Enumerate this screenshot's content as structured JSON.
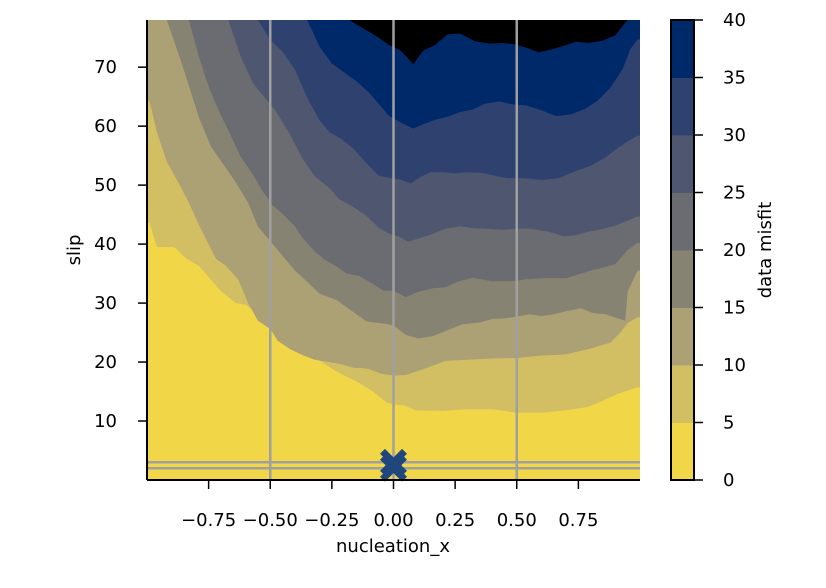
{
  "chart_data": {
    "type": "contour",
    "xlabel": "nucleation_x",
    "ylabel": "slip",
    "colorbar_label": "data misfit",
    "xlim": [
      -1.0,
      1.0
    ],
    "ylim": [
      0,
      78
    ],
    "xticks": [
      {
        "value": -0.75,
        "label": "−0.75"
      },
      {
        "value": -0.5,
        "label": "−0.50"
      },
      {
        "value": -0.25,
        "label": "−0.25"
      },
      {
        "value": 0.0,
        "label": "0.00"
      },
      {
        "value": 0.25,
        "label": "0.25"
      },
      {
        "value": 0.5,
        "label": "0.50"
      },
      {
        "value": 0.75,
        "label": "0.75"
      }
    ],
    "yticks": [
      {
        "value": 10,
        "label": "10"
      },
      {
        "value": 20,
        "label": "20"
      },
      {
        "value": 30,
        "label": "30"
      },
      {
        "value": 40,
        "label": "40"
      },
      {
        "value": 50,
        "label": "50"
      },
      {
        "value": 60,
        "label": "60"
      },
      {
        "value": 70,
        "label": "70"
      }
    ],
    "levels": [
      0,
      5,
      10,
      15,
      20,
      25,
      30,
      35,
      40
    ],
    "colorbar_ticks": [
      "0",
      "5",
      "10",
      "15",
      "20",
      "25",
      "30",
      "35",
      "40"
    ],
    "level_colors": [
      "#f1d748",
      "#d2bf64",
      "#aca075",
      "#878372",
      "#6b6c71",
      "#4e5670",
      "#2e416f",
      "#00296a"
    ],
    "contours": [
      {
        "level": 5,
        "points": [
          [
            -0.99,
            43.6
          ],
          [
            -0.96,
            39.5
          ],
          [
            -0.89,
            39.5
          ],
          [
            -0.84,
            37.5
          ],
          [
            -0.79,
            36.3
          ],
          [
            -0.75,
            34.4
          ],
          [
            -0.7,
            32
          ],
          [
            -0.64,
            30
          ],
          [
            -0.6,
            29.7
          ],
          [
            -0.54,
            27.8
          ],
          [
            -0.48,
            26
          ],
          [
            -0.43,
            24.6
          ],
          [
            -0.39,
            23
          ],
          [
            -0.34,
            21.5
          ],
          [
            -0.29,
            20
          ],
          [
            -0.24,
            18.6
          ],
          [
            -0.19,
            17.5
          ],
          [
            -0.14,
            16.5
          ],
          [
            -0.08,
            14.9
          ],
          [
            -0.03,
            13.2
          ],
          [
            0.0,
            12.8
          ],
          [
            0.04,
            12.7
          ],
          [
            0.09,
            11.8
          ],
          [
            0.2,
            11.7
          ],
          [
            0.3,
            12
          ],
          [
            0.4,
            12
          ],
          [
            0.5,
            11.4
          ],
          [
            0.6,
            11.4
          ],
          [
            0.7,
            11.8
          ],
          [
            0.79,
            12.4
          ],
          [
            0.84,
            13.3
          ],
          [
            0.91,
            14.6
          ],
          [
            0.99,
            15.7
          ]
        ]
      },
      {
        "level": 10,
        "points": [
          [
            -0.99,
            64.2
          ],
          [
            -0.96,
            59
          ],
          [
            -0.92,
            54
          ],
          [
            -0.88,
            51
          ],
          [
            -0.83,
            47
          ],
          [
            -0.79,
            43.3
          ],
          [
            -0.75,
            40
          ],
          [
            -0.72,
            37.5
          ],
          [
            -0.68,
            36.3
          ],
          [
            -0.63,
            34
          ],
          [
            -0.59,
            30
          ],
          [
            -0.55,
            27
          ],
          [
            -0.5,
            25.6
          ],
          [
            -0.47,
            23.6
          ],
          [
            -0.42,
            22.2
          ],
          [
            -0.37,
            21.2
          ],
          [
            -0.32,
            20.4
          ],
          [
            -0.26,
            20
          ],
          [
            -0.21,
            19.6
          ],
          [
            -0.16,
            19
          ],
          [
            -0.13,
            19
          ],
          [
            -0.1,
            18.8
          ],
          [
            -0.05,
            18
          ],
          [
            0.0,
            17.7
          ],
          [
            0.05,
            17.8
          ],
          [
            0.1,
            18.5
          ],
          [
            0.16,
            19.4
          ],
          [
            0.21,
            20.2
          ],
          [
            0.3,
            20.4
          ],
          [
            0.4,
            20.6
          ],
          [
            0.5,
            20.7
          ],
          [
            0.6,
            21.1
          ],
          [
            0.7,
            21.3
          ],
          [
            0.8,
            22.3
          ],
          [
            0.88,
            23.3
          ],
          [
            0.92,
            25
          ],
          [
            0.95,
            26.6
          ],
          [
            0.99,
            27.6
          ]
        ]
      },
      {
        "level": 15,
        "points": [
          [
            -0.92,
            78
          ],
          [
            -0.86,
            70.8
          ],
          [
            -0.79,
            61.5
          ],
          [
            -0.74,
            56.5
          ],
          [
            -0.69,
            53.5
          ],
          [
            -0.64,
            50.5
          ],
          [
            -0.59,
            47
          ],
          [
            -0.55,
            43
          ],
          [
            -0.5,
            40.5
          ],
          [
            -0.45,
            38
          ],
          [
            -0.4,
            35.5
          ],
          [
            -0.35,
            33.6
          ],
          [
            -0.3,
            31.6
          ],
          [
            -0.23,
            30.5
          ],
          [
            -0.18,
            29
          ],
          [
            -0.11,
            26.9
          ],
          [
            -0.08,
            26.7
          ],
          [
            -0.03,
            26.5
          ],
          [
            0.0,
            26.2
          ],
          [
            0.05,
            24.6
          ],
          [
            0.1,
            24
          ],
          [
            0.16,
            24.4
          ],
          [
            0.22,
            25.4
          ],
          [
            0.28,
            26.4
          ],
          [
            0.35,
            26.7
          ],
          [
            0.4,
            27.3
          ],
          [
            0.45,
            27.4
          ],
          [
            0.5,
            27.7
          ],
          [
            0.55,
            28.1
          ],
          [
            0.6,
            27.8
          ],
          [
            0.65,
            28.1
          ],
          [
            0.71,
            28.7
          ],
          [
            0.76,
            29.1
          ],
          [
            0.81,
            28.3
          ],
          [
            0.86,
            28.1
          ],
          [
            0.91,
            27.4
          ],
          [
            0.94,
            27
          ],
          [
            0.95,
            32
          ],
          [
            0.99,
            35.5
          ]
        ]
      },
      {
        "level": 20,
        "points": [
          [
            -0.83,
            78
          ],
          [
            -0.79,
            71.8
          ],
          [
            -0.75,
            66.7
          ],
          [
            -0.71,
            62.7
          ],
          [
            -0.66,
            58.4
          ],
          [
            -0.62,
            54.8
          ],
          [
            -0.57,
            51.8
          ],
          [
            -0.53,
            48.9
          ],
          [
            -0.49,
            46.6
          ],
          [
            -0.45,
            45.1
          ],
          [
            -0.4,
            43
          ],
          [
            -0.37,
            41.1
          ],
          [
            -0.32,
            38.8
          ],
          [
            -0.28,
            37.4
          ],
          [
            -0.23,
            36.2
          ],
          [
            -0.19,
            35
          ],
          [
            -0.14,
            34.6
          ],
          [
            -0.09,
            33.4
          ],
          [
            -0.04,
            32.1
          ],
          [
            0.0,
            32.1
          ],
          [
            0.05,
            31
          ],
          [
            0.1,
            31.9
          ],
          [
            0.16,
            32.5
          ],
          [
            0.21,
            32.7
          ],
          [
            0.26,
            33.6
          ],
          [
            0.32,
            34.3
          ],
          [
            0.4,
            33.7
          ],
          [
            0.49,
            33.7
          ],
          [
            0.53,
            34
          ],
          [
            0.6,
            34.2
          ],
          [
            0.7,
            34.2
          ],
          [
            0.8,
            35.5
          ],
          [
            0.9,
            36.6
          ],
          [
            0.95,
            39
          ],
          [
            0.99,
            40.2
          ]
        ]
      },
      {
        "level": 25,
        "points": [
          [
            -0.67,
            78
          ],
          [
            -0.62,
            71.8
          ],
          [
            -0.57,
            67.3
          ],
          [
            -0.52,
            64.7
          ],
          [
            -0.48,
            62.7
          ],
          [
            -0.42,
            58.6
          ],
          [
            -0.37,
            54.6
          ],
          [
            -0.32,
            51.5
          ],
          [
            -0.26,
            49.5
          ],
          [
            -0.22,
            47.6
          ],
          [
            -0.16,
            46.2
          ],
          [
            -0.11,
            44.8
          ],
          [
            -0.06,
            42.8
          ],
          [
            -0.02,
            41.8
          ],
          [
            0.02,
            41.3
          ],
          [
            0.06,
            40.4
          ],
          [
            0.09,
            40.8
          ],
          [
            0.15,
            41.6
          ],
          [
            0.21,
            42.6
          ],
          [
            0.27,
            43
          ],
          [
            0.33,
            42.7
          ],
          [
            0.38,
            42.6
          ],
          [
            0.44,
            42.4
          ],
          [
            0.5,
            42.6
          ],
          [
            0.56,
            42.6
          ],
          [
            0.63,
            42.1
          ],
          [
            0.69,
            41.3
          ],
          [
            0.74,
            41.5
          ],
          [
            0.79,
            42.1
          ],
          [
            0.84,
            42.5
          ],
          [
            0.89,
            43
          ],
          [
            0.94,
            43.8
          ],
          [
            0.99,
            44.7
          ]
        ]
      },
      {
        "level": 30,
        "points": [
          [
            -0.55,
            78
          ],
          [
            -0.5,
            74.6
          ],
          [
            -0.45,
            72.6
          ],
          [
            -0.4,
            69.6
          ],
          [
            -0.35,
            64.8
          ],
          [
            -0.3,
            61
          ],
          [
            -0.26,
            59
          ],
          [
            -0.21,
            57.8
          ],
          [
            -0.16,
            56.1
          ],
          [
            -0.11,
            53.7
          ],
          [
            -0.06,
            51.6
          ],
          [
            -0.01,
            51.2
          ],
          [
            0.03,
            50.9
          ],
          [
            0.07,
            50.3
          ],
          [
            0.11,
            51.4
          ],
          [
            0.15,
            52.2
          ],
          [
            0.2,
            52.2
          ],
          [
            0.25,
            52
          ],
          [
            0.3,
            52.2
          ],
          [
            0.36,
            52.1
          ],
          [
            0.42,
            51.5
          ],
          [
            0.46,
            51.2
          ],
          [
            0.53,
            51.2
          ],
          [
            0.57,
            51
          ],
          [
            0.61,
            50.9
          ],
          [
            0.67,
            51.2
          ],
          [
            0.74,
            52.4
          ],
          [
            0.8,
            53.3
          ],
          [
            0.86,
            54.7
          ],
          [
            0.91,
            56.3
          ],
          [
            0.95,
            57.4
          ],
          [
            0.99,
            58.4
          ]
        ]
      },
      {
        "level": 35,
        "points": [
          [
            -0.35,
            78
          ],
          [
            -0.3,
            73.5
          ],
          [
            -0.25,
            70.6
          ],
          [
            -0.2,
            69.1
          ],
          [
            -0.15,
            67.6
          ],
          [
            -0.1,
            65.7
          ],
          [
            -0.06,
            63.8
          ],
          [
            -0.02,
            61.8
          ],
          [
            0.03,
            60.6
          ],
          [
            0.08,
            59.6
          ],
          [
            0.12,
            60.3
          ],
          [
            0.17,
            61.1
          ],
          [
            0.22,
            61.6
          ],
          [
            0.27,
            62.4
          ],
          [
            0.32,
            62.8
          ],
          [
            0.37,
            63.8
          ],
          [
            0.43,
            64.2
          ],
          [
            0.48,
            63.7
          ],
          [
            0.54,
            63.5
          ],
          [
            0.6,
            62.7
          ],
          [
            0.66,
            61.7
          ],
          [
            0.72,
            62
          ],
          [
            0.78,
            63
          ],
          [
            0.83,
            64.4
          ],
          [
            0.88,
            66.5
          ],
          [
            0.93,
            69.7
          ],
          [
            0.96,
            73
          ],
          [
            0.99,
            74.7
          ]
        ]
      },
      {
        "level": 40,
        "points": [
          [
            -0.18,
            78
          ],
          [
            -0.14,
            77
          ],
          [
            -0.1,
            76
          ],
          [
            -0.06,
            75
          ],
          [
            -0.02,
            73.8
          ],
          [
            0.03,
            72.8
          ],
          [
            0.08,
            70.5
          ],
          [
            0.12,
            72.8
          ],
          [
            0.17,
            73.8
          ],
          [
            0.22,
            75.6
          ],
          [
            0.27,
            75.7
          ],
          [
            0.33,
            74.4
          ],
          [
            0.39,
            74
          ],
          [
            0.44,
            74.1
          ],
          [
            0.49,
            73.9
          ],
          [
            0.54,
            73.3
          ],
          [
            0.59,
            72.5
          ],
          [
            0.64,
            73
          ],
          [
            0.69,
            73.6
          ],
          [
            0.74,
            74.3
          ],
          [
            0.79,
            74.1
          ],
          [
            0.85,
            74.5
          ],
          [
            0.9,
            75.4
          ],
          [
            0.95,
            78
          ]
        ]
      }
    ],
    "vlines": [
      -0.5,
      0.0,
      0.5
    ],
    "hlines": [
      2.0,
      3.0
    ],
    "markers": [
      {
        "x": 0.0,
        "y": 2.0,
        "symbol": "x"
      },
      {
        "x": 0.0,
        "y": 3.0,
        "symbol": "x"
      }
    ],
    "reference_line_color": "#a0a0a0",
    "marker_color": "#1f477d"
  }
}
